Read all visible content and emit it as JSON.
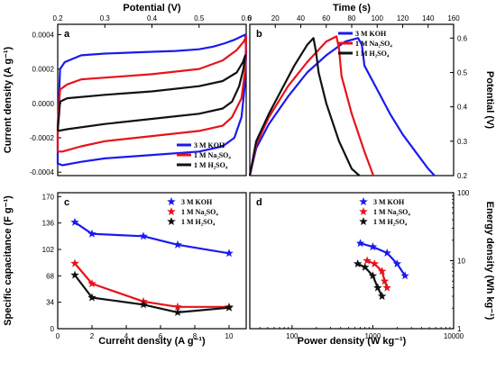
{
  "colors": {
    "koh": "#1a1aee",
    "na2so4": "#e8121a",
    "h2so4": "#111111"
  },
  "chart_data": [
    {
      "id": "a",
      "type": "line",
      "panel_label": "a",
      "xlabel": "Potential (V)",
      "ylabel": "Current density (A g⁻¹)",
      "xlim": [
        0.2,
        0.6
      ],
      "ylim": [
        -0.00042,
        0.00046
      ],
      "xticks": [
        0.2,
        0.3,
        0.4,
        0.5,
        0.6
      ],
      "xtick_labels": [
        "0.2",
        "0.3",
        "0.4",
        "0.5",
        "0.6"
      ],
      "yticks": [
        -0.0004,
        -0.0002,
        0.0,
        0.0002,
        0.0004
      ],
      "ytick_labels": [
        "-0.0004",
        "-0.0002",
        "0.0000",
        "0.0002",
        "0.0004"
      ],
      "legend_position": "bottom-right",
      "series": [
        {
          "name": "3 M KOH",
          "color_key": "koh",
          "x": [
            0.2,
            0.205,
            0.215,
            0.25,
            0.3,
            0.35,
            0.4,
            0.45,
            0.5,
            0.53,
            0.555,
            0.575,
            0.59,
            0.598,
            0.6,
            0.597,
            0.59,
            0.575,
            0.55,
            0.5,
            0.4,
            0.3,
            0.25,
            0.21,
            0.2,
            0.2
          ],
          "y": [
            -0.00018,
            0.0002,
            0.00024,
            0.00028,
            0.00029,
            0.000295,
            0.0003,
            0.000305,
            0.000315,
            0.00033,
            0.00035,
            0.00037,
            0.00039,
            0.0004,
            0.0003,
            0.0001,
            -8e-05,
            -0.0002,
            -0.00025,
            -0.00028,
            -0.0003,
            -0.00032,
            -0.00034,
            -0.00036,
            -0.00035,
            -0.00018
          ]
        },
        {
          "name": "1 M Na₂SO₄",
          "color_key": "na2so4",
          "x": [
            0.2,
            0.205,
            0.22,
            0.25,
            0.3,
            0.4,
            0.5,
            0.55,
            0.58,
            0.595,
            0.6,
            0.598,
            0.59,
            0.57,
            0.55,
            0.5,
            0.4,
            0.3,
            0.25,
            0.21,
            0.2,
            0.2
          ],
          "y": [
            -0.00012,
            8e-05,
            0.00011,
            0.00014,
            0.00015,
            0.00017,
            0.0002,
            0.00025,
            0.00031,
            0.00036,
            0.00039,
            0.0002,
            3e-05,
            -8e-05,
            -0.00013,
            -0.00016,
            -0.00019,
            -0.00022,
            -0.00025,
            -0.00028,
            -0.00028,
            -0.00012
          ]
        },
        {
          "name": "1 M H₂SO₄",
          "color_key": "h2so4",
          "x": [
            0.2,
            0.205,
            0.22,
            0.3,
            0.4,
            0.5,
            0.55,
            0.58,
            0.593,
            0.598,
            0.594,
            0.585,
            0.57,
            0.55,
            0.5,
            0.4,
            0.3,
            0.22,
            0.2,
            0.2
          ],
          "y": [
            -0.00016,
            1e-05,
            3e-05,
            5e-05,
            7e-05,
            0.0001,
            0.00013,
            0.00018,
            0.00024,
            0.00028,
            0.0002,
            0.0001,
            1e-05,
            -3e-05,
            -6e-05,
            -9e-05,
            -0.00012,
            -0.00015,
            -0.00016,
            -0.00016
          ]
        }
      ]
    },
    {
      "id": "b",
      "type": "line",
      "panel_label": "b",
      "xlabel": "Time (s)",
      "ylabel": "Potential (V)",
      "xlim": [
        0,
        160
      ],
      "ylim": [
        0.2,
        0.64
      ],
      "xticks": [
        0,
        20,
        40,
        60,
        80,
        100,
        120,
        140,
        160
      ],
      "xtick_labels": [
        "0",
        "20",
        "40",
        "60",
        "80",
        "100",
        "120",
        "140",
        "160"
      ],
      "yticks": [
        0.2,
        0.3,
        0.4,
        0.5,
        0.6
      ],
      "ytick_labels": [
        "0.2",
        "0.3",
        "0.4",
        "0.5",
        "0.6"
      ],
      "legend_position": "top-right",
      "series": [
        {
          "name": "3 M KOH",
          "color_key": "koh",
          "x": [
            0,
            5,
            15,
            30,
            45,
            60,
            75,
            85,
            88,
            90,
            100,
            110,
            120,
            130,
            140,
            145
          ],
          "y": [
            0.2,
            0.28,
            0.35,
            0.43,
            0.5,
            0.55,
            0.59,
            0.6,
            0.58,
            0.52,
            0.45,
            0.38,
            0.32,
            0.27,
            0.22,
            0.2
          ]
        },
        {
          "name": "1 M Na₂SO₄",
          "color_key": "na2so4",
          "x": [
            0,
            5,
            15,
            30,
            45,
            60,
            68,
            70,
            72,
            80,
            90,
            97
          ],
          "y": [
            0.2,
            0.29,
            0.37,
            0.46,
            0.53,
            0.59,
            0.605,
            0.57,
            0.49,
            0.38,
            0.27,
            0.2
          ]
        },
        {
          "name": "1 M H₂SO₄",
          "color_key": "h2so4",
          "x": [
            0,
            5,
            15,
            25,
            35,
            45,
            50,
            52,
            54,
            60,
            70,
            80,
            86
          ],
          "y": [
            0.2,
            0.3,
            0.38,
            0.45,
            0.52,
            0.58,
            0.6,
            0.56,
            0.5,
            0.41,
            0.3,
            0.22,
            0.2
          ]
        }
      ]
    },
    {
      "id": "c",
      "type": "line",
      "panel_label": "c",
      "xlabel": "Current density (A g⁻¹)",
      "ylabel": "Specific capacitance (F g⁻¹)",
      "xlim": [
        0,
        11
      ],
      "ylim": [
        0,
        175
      ],
      "xticks": [
        0,
        2,
        4,
        6,
        8,
        10
      ],
      "xtick_labels": [
        "0",
        "2",
        "4",
        "6",
        "8",
        "10"
      ],
      "yticks": [
        0,
        34,
        68,
        102,
        136,
        170
      ],
      "ytick_labels": [
        "0",
        "34",
        "68",
        "102",
        "136",
        "170"
      ],
      "legend_position": "top-right",
      "series": [
        {
          "name": "3 M KOH",
          "color_key": "koh",
          "x": [
            1,
            2,
            5,
            7,
            10
          ],
          "y": [
            137,
            122,
            119,
            108,
            97
          ]
        },
        {
          "name": "1 M Na₂SO₄",
          "color_key": "na2so4",
          "x": [
            1,
            2,
            5,
            7,
            10
          ],
          "y": [
            84,
            58,
            35,
            28,
            28
          ]
        },
        {
          "name": "1 M H₂SO₄",
          "color_key": "h2so4",
          "x": [
            1,
            2,
            5,
            7,
            10
          ],
          "y": [
            69,
            40,
            31,
            21,
            27
          ]
        }
      ]
    },
    {
      "id": "d",
      "type": "line",
      "panel_label": "d",
      "xlabel": "Power density (W kg⁻¹)",
      "ylabel": "Energy density (Wh kg⁻¹)",
      "xscale": "log",
      "yscale": "log",
      "xlim": [
        30,
        10000
      ],
      "ylim": [
        1,
        100
      ],
      "xticks": [
        100,
        1000,
        10000
      ],
      "xtick_labels": [
        "100",
        "1000",
        "10000"
      ],
      "yticks": [
        1,
        10,
        100
      ],
      "ytick_labels": [
        "1",
        "10",
        "100"
      ],
      "legend_position": "top-right",
      "series": [
        {
          "name": "3 M KOH",
          "color_key": "koh",
          "x": [
            700,
            1000,
            1500,
            2000,
            2500
          ],
          "y": [
            18,
            16,
            13,
            9,
            6
          ]
        },
        {
          "name": "1 M Na₂SO₄",
          "color_key": "na2so4",
          "x": [
            850,
            1050,
            1300,
            1400,
            1500
          ],
          "y": [
            10,
            9,
            7,
            5,
            4
          ]
        },
        {
          "name": "1 M H₂SO₄",
          "color_key": "h2so4",
          "x": [
            650,
            800,
            1000,
            1150,
            1300
          ],
          "y": [
            9,
            8,
            6,
            4,
            3
          ]
        }
      ]
    }
  ]
}
